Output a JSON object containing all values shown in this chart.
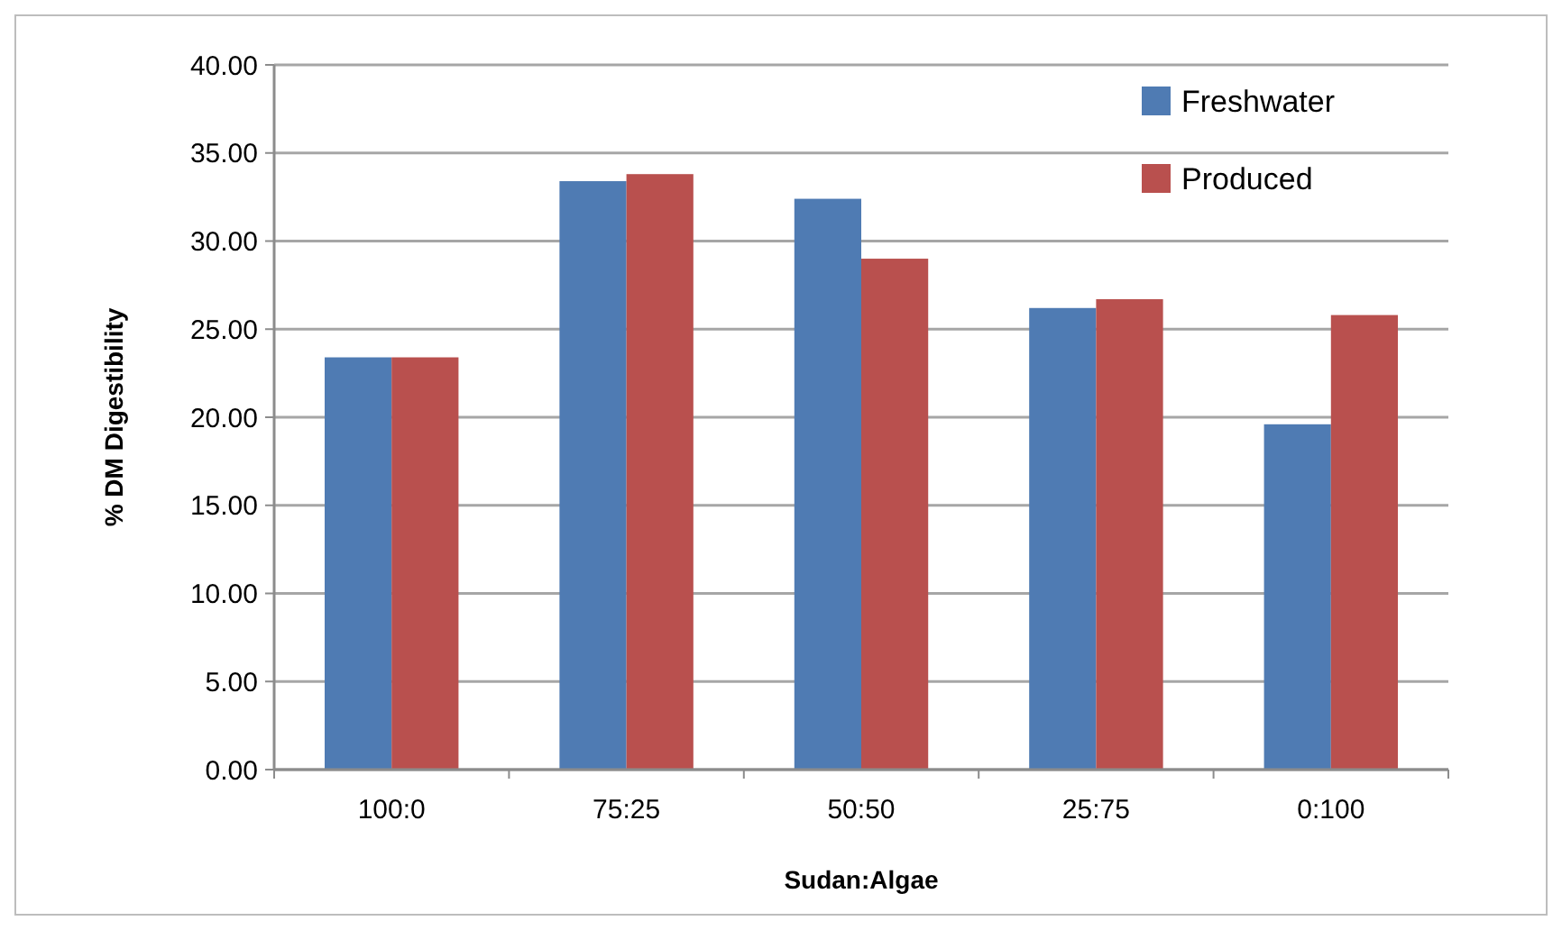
{
  "chart_data": {
    "type": "bar",
    "xlabel": "Sudan:Algae",
    "ylabel": "% DM Digestibility",
    "categories": [
      "100:0",
      "75:25",
      "50:50",
      "25:75",
      "0:100"
    ],
    "series": [
      {
        "name": "Freshwater",
        "color": "#4f7bb3",
        "values": [
          23.4,
          33.4,
          32.4,
          26.2,
          19.6
        ]
      },
      {
        "name": "Produced",
        "color": "#b9504e",
        "values": [
          23.4,
          33.8,
          29.0,
          26.7,
          25.8
        ]
      }
    ],
    "ylim": [
      0,
      40
    ],
    "yticks": [
      {
        "value": 0,
        "label": "0.00"
      },
      {
        "value": 5,
        "label": "5.00"
      },
      {
        "value": 10,
        "label": "10.00"
      },
      {
        "value": 15,
        "label": "15.00"
      },
      {
        "value": 20,
        "label": "20.00"
      },
      {
        "value": 25,
        "label": "25.00"
      },
      {
        "value": 30,
        "label": "30.00"
      },
      {
        "value": 35,
        "label": "35.00"
      },
      {
        "value": 40,
        "label": "40.00"
      }
    ],
    "grid": "y",
    "legend": "top right"
  }
}
